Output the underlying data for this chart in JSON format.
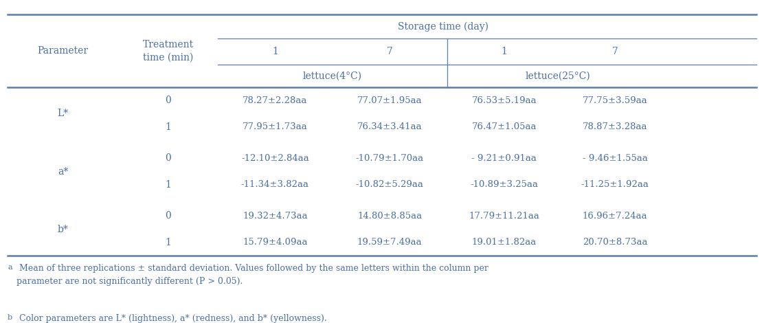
{
  "title": "Storage time (day)",
  "param_header": "Parameter",
  "treatment_header": "Treatment\ntime (min)",
  "day_labels": [
    "1",
    "7",
    "1",
    "7"
  ],
  "lettuce_4": "lettuce(4°C)",
  "lettuce_25": "lettuce(25°C)",
  "row_groups": [
    {
      "param": "L*",
      "rows": [
        [
          "0",
          "78.27±2.28aa",
          "77.07±1.95aa",
          "76.53±5.19aa",
          "77.75±3.59aa"
        ],
        [
          "1",
          "77.95±1.73aa",
          "76.34±3.41aa",
          "76.47±1.05aa",
          "78.87±3.28aa"
        ]
      ]
    },
    {
      "param": "a*",
      "rows": [
        [
          "0",
          "-12.10±2.84aa",
          "-10.79±1.70aa",
          "- 9.21±0.91aa",
          "- 9.46±1.55aa"
        ],
        [
          "1",
          "-11.34±3.82aa",
          "-10.82±5.29aa",
          "-10.89±3.25aa",
          "-11.25±1.92aa"
        ]
      ]
    },
    {
      "param": "b*",
      "rows": [
        [
          "0",
          "19.32±4.73aa",
          "14.80±8.85aa",
          "17.79±11.21aa",
          "16.96±7.24aa"
        ],
        [
          "1",
          "15.79±4.09aa",
          "19.59±7.49aa",
          "19.01±1.82aa",
          "20.70±8.73aa"
        ]
      ]
    }
  ],
  "footnote_a": " Mean of three replications ± standard deviation. Values followed by the same letters within the column per\nparameter are not significantly different (P > 0.05).",
  "footnote_b": " Color parameters are L* (lightness), a* (redness), and b* (yellowness).",
  "text_color": "#4a6fa5",
  "line_color": "#5a7fa8",
  "bg_color": "#ffffff",
  "font_size": 10.0,
  "footnote_font_size": 9.0
}
